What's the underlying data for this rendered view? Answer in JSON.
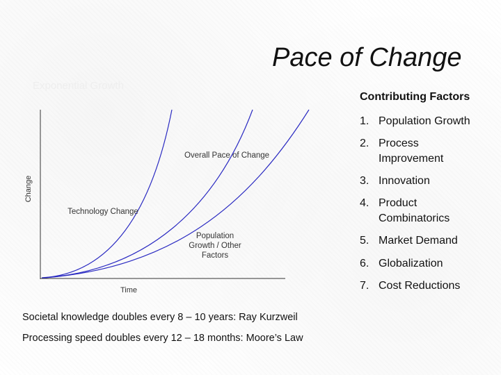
{
  "slide": {
    "title": "Pace of Change",
    "subtitle_faint": "Exponential Growth"
  },
  "diagram": {
    "y_axis_label": "Change",
    "x_axis_label": "Time",
    "curve_labels": {
      "overall": "Overall Pace of Change",
      "technology": "Technology Change",
      "population_line1": "Population",
      "population_line2": "Growth / Other",
      "population_line3": "Factors"
    }
  },
  "factors": {
    "heading": "Contributing Factors",
    "items": [
      {
        "num": "1.",
        "label": "Population Growth"
      },
      {
        "num": "2.",
        "label": "Process Improvement"
      },
      {
        "num": "3.",
        "label": "Innovation"
      },
      {
        "num": "4.",
        "label": "Product Combinatorics"
      },
      {
        "num": "5.",
        "label": "Market Demand"
      },
      {
        "num": "6.",
        "label": "Globalization"
      },
      {
        "num": "7.",
        "label": "Cost Reductions"
      }
    ]
  },
  "footnotes": [
    "Societal knowledge doubles every 8 – 10 years: Ray Kurzweil",
    "Processing speed doubles every 12 – 18 months: Moore’s Law"
  ]
}
